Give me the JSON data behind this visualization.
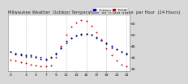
{
  "title": "Milwaukee Weather  Outdoor Temperature  vs THSW Index  per Hour  (24 Hours)",
  "bg_color": "#d8d8d8",
  "plot_bg": "#ffffff",
  "blue_color": "#0000cc",
  "red_color": "#cc0000",
  "black_color": "#000000",
  "legend_blue_label": "Outdoor",
  "legend_red_label": "THSW",
  "hours": [
    0,
    1,
    2,
    3,
    4,
    5,
    6,
    7,
    8,
    9,
    10,
    11,
    12,
    13,
    14,
    15,
    16,
    17,
    18,
    19,
    20,
    21,
    22,
    23
  ],
  "temp_blue": [
    35,
    34,
    33,
    32,
    32,
    31,
    30,
    29,
    30,
    33,
    38,
    43,
    47,
    49,
    50,
    51,
    50,
    48,
    46,
    43,
    40,
    37,
    35,
    34
  ],
  "thsw_red": [
    28,
    27,
    26,
    25,
    24,
    23,
    22,
    22,
    23,
    30,
    40,
    50,
    57,
    61,
    63,
    62,
    58,
    52,
    45,
    38,
    32,
    27,
    24,
    22
  ],
  "temp_black": [
    35,
    33,
    32,
    31,
    31,
    30,
    29,
    28,
    30,
    34,
    39,
    44,
    47,
    49,
    51,
    51,
    50,
    47,
    45,
    42,
    39,
    37,
    35,
    33
  ],
  "ylim_min": 18,
  "ylim_max": 68,
  "ytick_vals": [
    20,
    30,
    40,
    50,
    60
  ],
  "ytick_labels": [
    "20",
    "30",
    "40",
    "50",
    "60"
  ],
  "xlim_min": -0.5,
  "xlim_max": 23.5,
  "xtick_vals": [
    0,
    3,
    5,
    7,
    9,
    11,
    13,
    15,
    17,
    19,
    21,
    23
  ],
  "xtick_labels": [
    "0",
    "3",
    "5",
    "7",
    "9",
    "11",
    "13",
    "15",
    "17",
    "19",
    "21",
    "23"
  ],
  "vgrid_positions": [
    3,
    7,
    11,
    15,
    19,
    23
  ],
  "grid_color": "#aaaaaa",
  "title_fontsize": 3.8,
  "tick_fontsize": 3.2,
  "marker_size": 2.0,
  "legend_fontsize": 2.8
}
